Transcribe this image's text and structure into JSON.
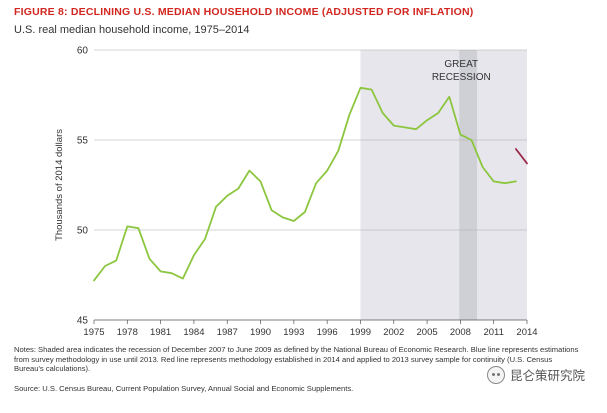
{
  "figure": {
    "title": "FIGURE 8: DECLINING U.S. MEDIAN HOUSEHOLD INCOME (ADJUSTED FOR INFLATION)",
    "subtitle": "U.S. real median household income, 1975–2014",
    "notes": "Notes: Shaded area indicates the recession of December 2007 to June 2009 as defined by the National Bureau of Economic Research. Blue line represents estimations from survey methodology in use until 2013. Red line represents methodology established in 2014 and applied to 2013 survey sample for continuity (U.S. Census Bureau's calculations).",
    "source": "Source: U.S. Census Bureau, Current Population Survey, Annual Social and Economic Supplements."
  },
  "watermark": {
    "text": "昆仑策研究院",
    "icon": "wechat-icon"
  },
  "colors": {
    "title": "#d2261f",
    "blue_line": "#8cc63f",
    "red_line": "#9b2a4a",
    "shade": "#e6e6ec",
    "recession": "#cfcfd6",
    "grid": "#aaaaaa"
  },
  "chart_data": {
    "type": "line",
    "title": "",
    "xlabel": "",
    "ylabel": "Thousands of 2014 dollars",
    "xlim": [
      1975,
      2014
    ],
    "ylim": [
      45,
      60
    ],
    "x_ticks": [
      1975,
      1978,
      1981,
      1984,
      1987,
      1990,
      1993,
      1996,
      1999,
      2002,
      2005,
      2008,
      2011,
      2014
    ],
    "y_ticks": [
      45,
      50,
      55,
      60
    ],
    "grid": "horizontal",
    "shaded_region": {
      "from": 1999,
      "to": 2014
    },
    "recession": {
      "from": 2007.9,
      "to": 2009.5,
      "label_line1": "GREAT",
      "label_line2": "RECESSION"
    },
    "series": [
      {
        "name": "",
        "x": [
          1975,
          1976,
          1977,
          1978,
          1979,
          1980,
          1981,
          1982,
          1983,
          1984,
          1985,
          1986,
          1987,
          1988,
          1989,
          1990,
          1991,
          1992,
          1993,
          1994,
          1995,
          1996,
          1997,
          1998,
          1999,
          2000,
          2001,
          2002,
          2003,
          2004,
          2005,
          2006,
          2007,
          2008,
          2009,
          2010,
          2011,
          2012,
          2013
        ],
        "values": [
          47.2,
          48.0,
          48.3,
          50.2,
          50.1,
          48.4,
          47.7,
          47.6,
          47.3,
          48.6,
          49.5,
          51.3,
          51.9,
          52.3,
          53.3,
          52.7,
          51.1,
          50.7,
          50.5,
          51.0,
          52.6,
          53.3,
          54.4,
          56.4,
          57.9,
          57.8,
          56.5,
          55.8,
          55.7,
          55.6,
          56.1,
          56.5,
          57.4,
          55.3,
          55.0,
          53.5,
          52.7,
          52.6,
          52.7
        ]
      },
      {
        "name": "",
        "x": [
          2013,
          2014
        ],
        "values": [
          54.5,
          53.7
        ]
      }
    ]
  }
}
